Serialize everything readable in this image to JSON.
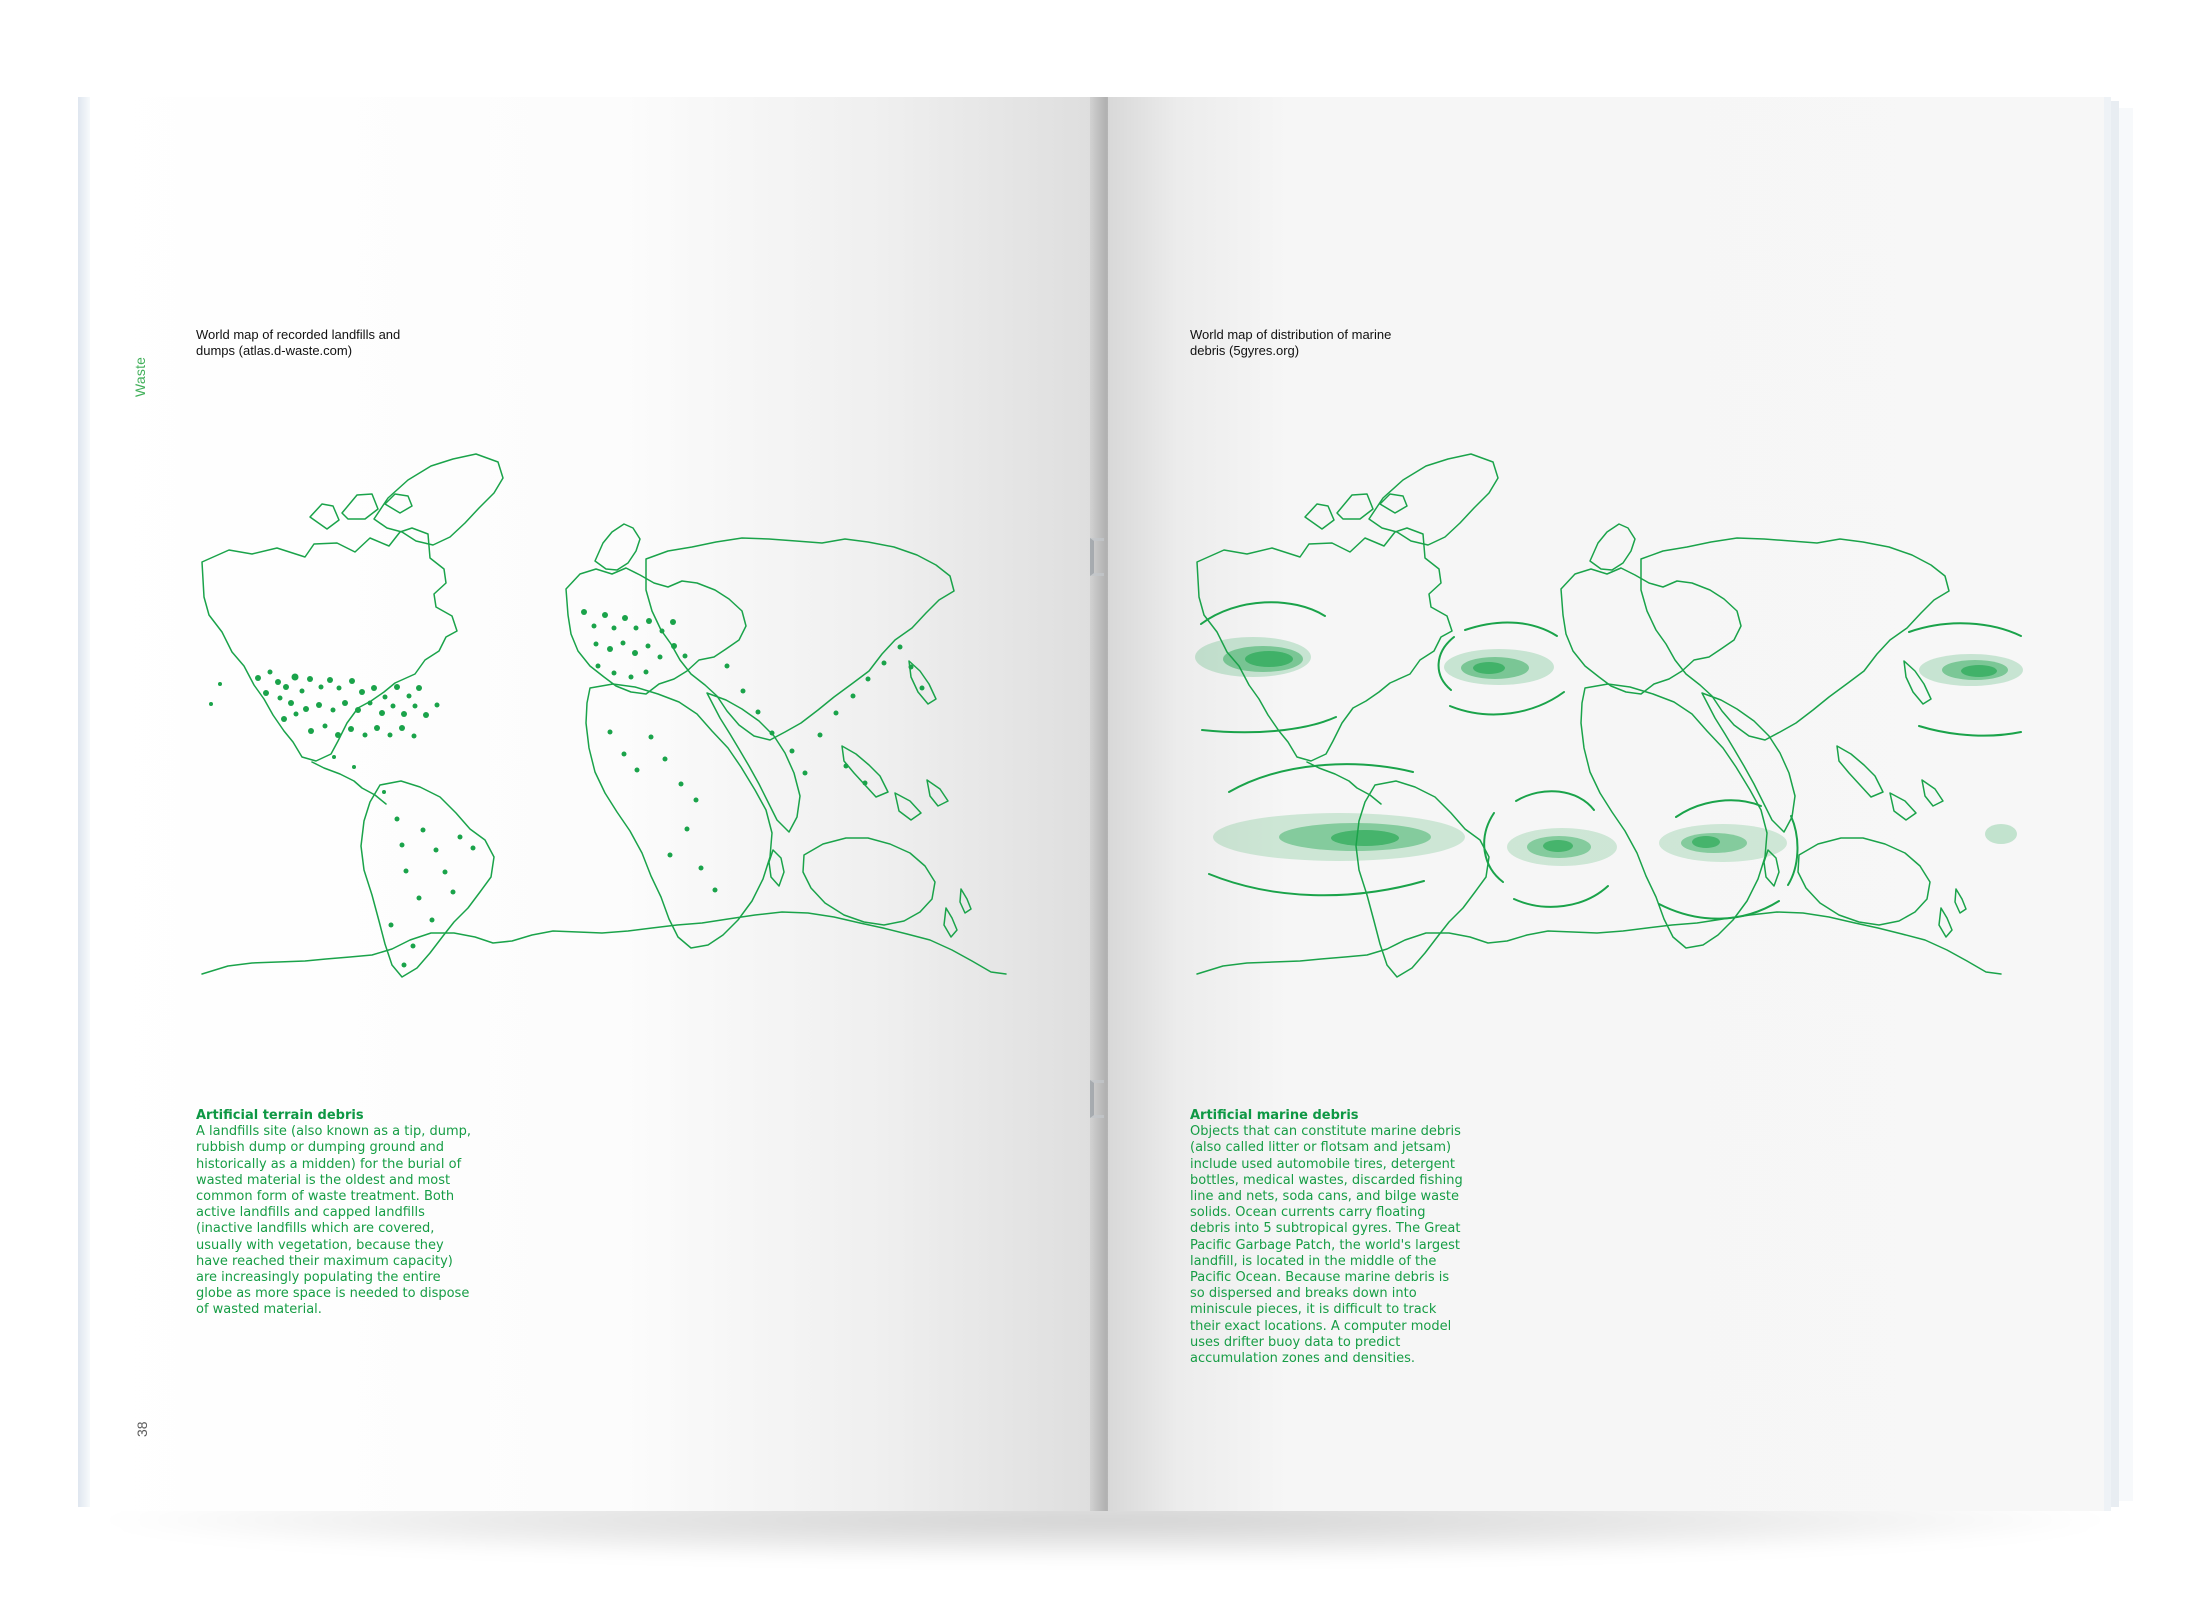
{
  "left_page": {
    "section_label": "Waste",
    "page_number": "38",
    "map_caption_line1": "World map of recorded landfills and",
    "map_caption_line2": "dumps (atlas.d-waste.com)",
    "article_title": "Artificial terrain debris",
    "article_body": "A landfills site (also known as a tip, dump, rubbish dump or dumping ground and historically as a midden) for the burial of wasted material is the oldest and most common form of waste treatment. Both active landfills and capped landfills (inactive landfills which are covered, usually with vegetation, because they have reached their maximum capacity) are increasingly populating the entire globe as more space is needed to dispose of wasted material."
  },
  "right_page": {
    "map_caption_line1": "World map of distribution of marine",
    "map_caption_line2": "debris (5gyres.org)",
    "article_title": "Artificial marine debris",
    "article_body": "Objects that can constitute marine debris (also called litter or flotsam and jetsam) include used automobile tires, detergent bottles, medical wastes, discarded fishing line and nets, soda cans, and bilge waste solids. Ocean currents carry floating debris into 5 subtropical gyres. The Great Pacific Garbage Patch, the world's largest landfill, is located in the middle of the Pacific Ocean. Because marine debris is so dispersed and breaks down into miniscule pieces, it is difficult to track their exact locations. A computer model uses drifter buoy data to predict accumulation zones and densities."
  },
  "colors": {
    "accent_green": "#169d45",
    "map_line_green": "#1aa34a",
    "caption_black": "#111111",
    "page_number_gray": "#5b5b5b"
  }
}
